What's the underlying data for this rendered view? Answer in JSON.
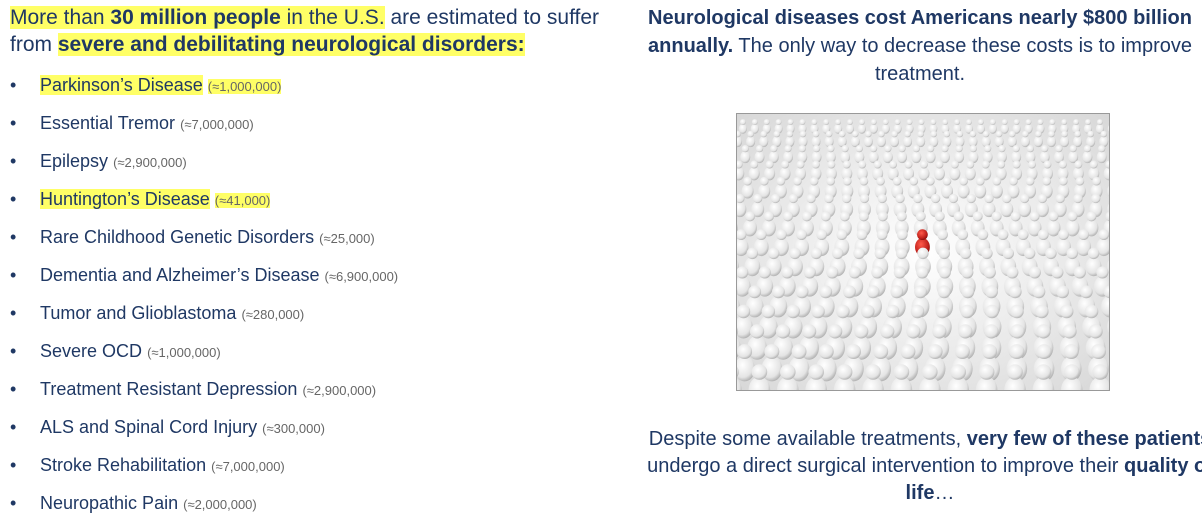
{
  "intro": {
    "p1": "More than ",
    "p2": "30 million people",
    "p3": " in the U.S.",
    "p4": " are estimated to suffer from ",
    "p5": "severe and debilitating neurological disorders:"
  },
  "diseases": [
    {
      "name": "Parkinson’s Disease",
      "count": "(≈1,000,000)",
      "highlight": true
    },
    {
      "name": "Essential Tremor",
      "count": "(≈7,000,000)",
      "highlight": false
    },
    {
      "name": "Epilepsy",
      "count": "(≈2,900,000)",
      "highlight": false
    },
    {
      "name": "Huntington’s Disease",
      "count": "(≈41,000)",
      "highlight": true
    },
    {
      "name": "Rare Childhood Genetic Disorders",
      "count": "(≈25,000)",
      "highlight": false
    },
    {
      "name": "Dementia and Alzheimer’s Disease",
      "count": "(≈6,900,000)",
      "highlight": false
    },
    {
      "name": "Tumor and Glioblastoma",
      "count": "(≈280,000)",
      "highlight": false
    },
    {
      "name": "Severe OCD",
      "count": "(≈1,000,000)",
      "highlight": false
    },
    {
      "name": "Treatment Resistant Depression",
      "count": "(≈2,900,000)",
      "highlight": false
    },
    {
      "name": "ALS and Spinal Cord Injury",
      "count": "(≈300,000)",
      "highlight": false
    },
    {
      "name": "Stroke Rehabilitation",
      "count": "(≈7,000,000)",
      "highlight": false
    },
    {
      "name": "Neuropathic Pain",
      "count": "(≈2,000,000)",
      "highlight": false
    }
  ],
  "right_top": {
    "bold": "Neurological diseases cost Americans nearly $800 billion annually.",
    "rest": " The only way to decrease these costs is to improve treatment."
  },
  "right_bottom": {
    "p1": "Despite some available treatments, ",
    "p2": "very few of these patients",
    "p3": " undergo a direct surgical intervention to improve their ",
    "p4": "quality of life",
    "p5": "…"
  },
  "colors": {
    "text": "#1f3864",
    "highlight": "#ffff66",
    "figure_white": "#e8e8e8",
    "figure_red": "#c0201a"
  }
}
